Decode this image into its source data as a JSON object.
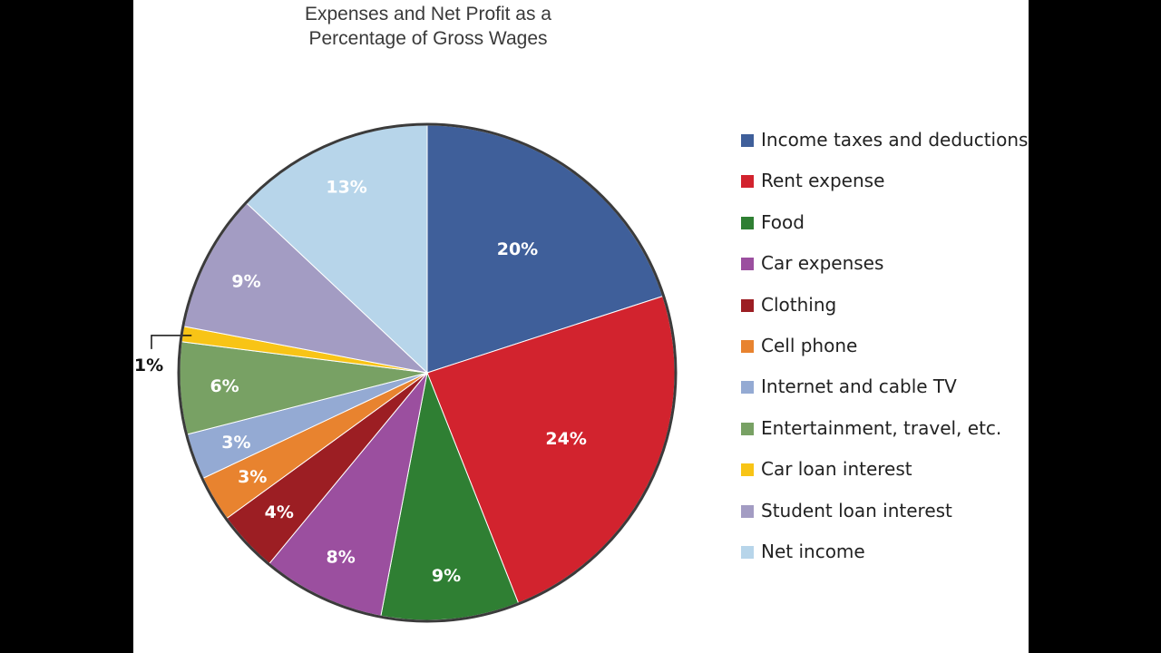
{
  "chart_data": {
    "type": "pie",
    "title": "Expenses and Net Profit as a Percentage of Gross Wages",
    "title_lines": [
      "Expenses and Net Profit as a",
      "Percentage of Gross Wages"
    ],
    "legend_position": "right",
    "slices": [
      {
        "name": "Income taxes and deductions",
        "value": 20,
        "label": "20%",
        "color": "#3f5f9a"
      },
      {
        "name": "Rent expense",
        "value": 24,
        "label": "24%",
        "color": "#d2232e"
      },
      {
        "name": "Food",
        "value": 9,
        "label": "9%",
        "color": "#2f7f33"
      },
      {
        "name": "Car expenses",
        "value": 8,
        "label": "8%",
        "color": "#9b4f9f"
      },
      {
        "name": "Clothing",
        "value": 4,
        "label": "4%",
        "color": "#9c1e23"
      },
      {
        "name": "Cell phone",
        "value": 3,
        "label": "3%",
        "color": "#e8832f"
      },
      {
        "name": "Internet and cable TV",
        "value": 3,
        "label": "3%",
        "color": "#94aad3"
      },
      {
        "name": "Entertainment, travel, etc.",
        "value": 6,
        "label": "6%",
        "color": "#78a164"
      },
      {
        "name": "Car loan interest",
        "value": 1,
        "label": "1%",
        "color": "#f8c416"
      },
      {
        "name": "Student loan interest",
        "value": 9,
        "label": "9%",
        "color": "#a39cc3"
      },
      {
        "name": "Net income",
        "value": 13,
        "label": "13%",
        "color": "#b7d5ea"
      }
    ]
  }
}
